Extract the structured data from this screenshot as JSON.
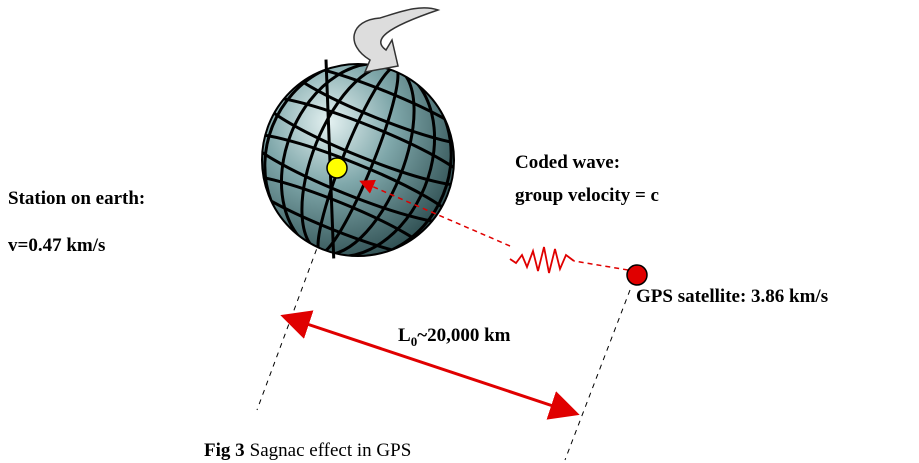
{
  "station": {
    "label": "Station on earth:",
    "velocity": "v=0.47 km/s"
  },
  "wave": {
    "line1": "Coded wave:",
    "line2": "group velocity = c"
  },
  "satellite": {
    "label": "GPS satellite: 3.86 km/s"
  },
  "distance": {
    "symbol": "L",
    "subscript": "0",
    "text": "~20,000 km"
  },
  "caption": {
    "label": "Fig 3",
    "text": "Sagnac effect in GPS"
  }
}
